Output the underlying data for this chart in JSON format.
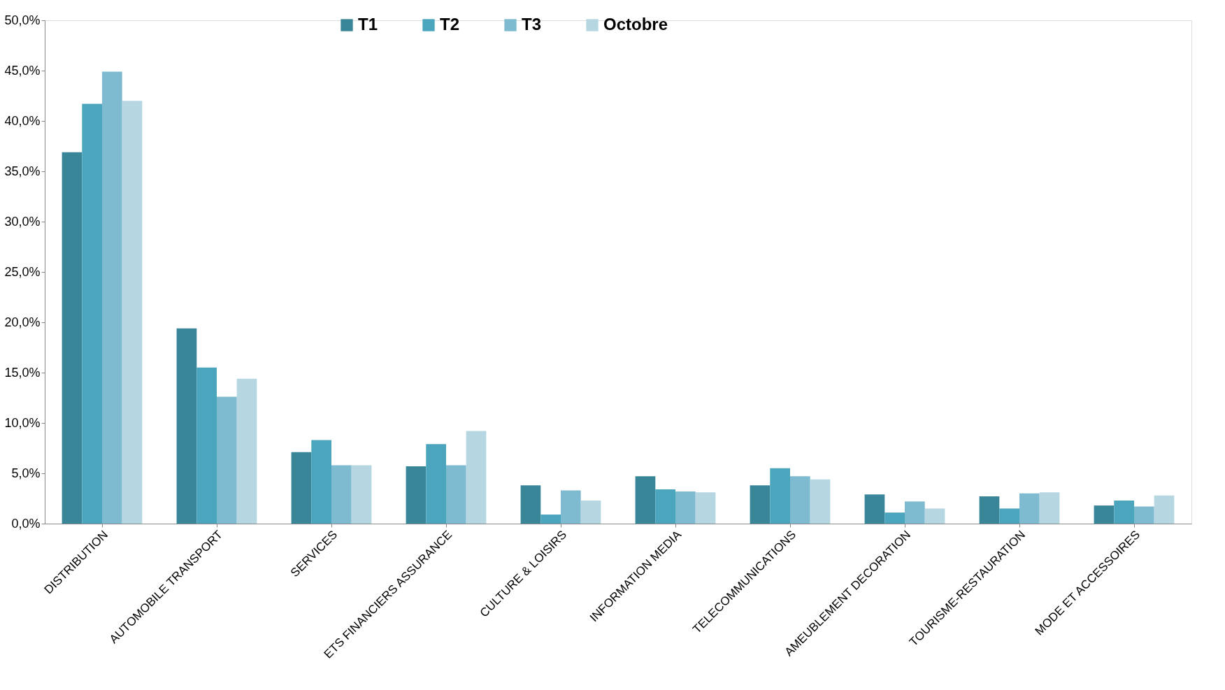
{
  "chart_data": {
    "type": "bar",
    "categories": [
      "DISTRIBUTION",
      "AUTOMOBILE TRANSPORT",
      "SERVICES",
      "ETS FINANCIERS ASSURANCE",
      "CULTURE & LOISIRS",
      "INFORMATION MEDIA",
      "TELECOMMUNICATIONS",
      "AMEUBLEMENT DECORATION",
      "TOURISME-RESTAURATION",
      "MODE ET ACCESSOIRES"
    ],
    "series": [
      {
        "name": "T1",
        "color": "#3a8699",
        "values": [
          36.9,
          19.4,
          7.1,
          5.7,
          3.8,
          4.7,
          3.8,
          2.9,
          2.7,
          1.8
        ]
      },
      {
        "name": "T2",
        "color": "#4aa5bd",
        "values": [
          41.7,
          15.5,
          8.3,
          7.9,
          0.9,
          3.4,
          5.5,
          1.1,
          1.5,
          2.3
        ]
      },
      {
        "name": "T3",
        "color": "#7fbbd0",
        "values": [
          44.9,
          12.6,
          5.8,
          5.8,
          3.3,
          3.2,
          4.7,
          2.2,
          3.0,
          1.7
        ]
      },
      {
        "name": "Octobre",
        "color": "#b6d7e1",
        "values": [
          42.0,
          14.4,
          5.8,
          9.2,
          2.3,
          3.1,
          4.4,
          1.5,
          3.1,
          2.8
        ]
      }
    ],
    "ylim": [
      0,
      50
    ],
    "yticks": [
      {
        "value": 0,
        "label": "0,0%"
      },
      {
        "value": 5,
        "label": "5,0%"
      },
      {
        "value": 10,
        "label": "10,0%"
      },
      {
        "value": 15,
        "label": "15,0%"
      },
      {
        "value": 20,
        "label": "20,0%"
      },
      {
        "value": 25,
        "label": "25,0%"
      },
      {
        "value": 30,
        "label": "30,0%"
      },
      {
        "value": 35,
        "label": "35,0%"
      },
      {
        "value": 40,
        "label": "40,0%"
      },
      {
        "value": 45,
        "label": "45,0%"
      },
      {
        "value": 50,
        "label": "50,0%"
      }
    ],
    "grid": false,
    "legend": "top"
  }
}
